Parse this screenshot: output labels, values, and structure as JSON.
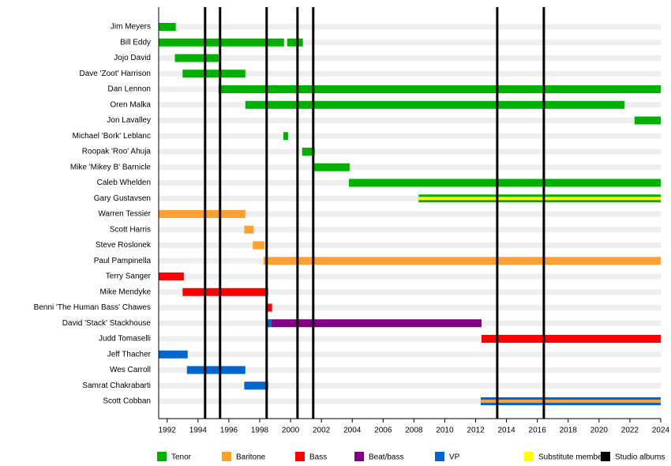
{
  "chart_data": {
    "type": "timeline",
    "xlim": [
      1991.45,
      2024
    ],
    "xticks": [
      1992,
      1994,
      1996,
      1998,
      2000,
      2002,
      2004,
      2006,
      2008,
      2010,
      2012,
      2014,
      2016,
      2018,
      2020,
      2022,
      2024
    ],
    "roles": [
      {
        "name": "Tenor",
        "color": "#00b000"
      },
      {
        "name": "Baritone",
        "color": "#ffa030"
      },
      {
        "name": "Bass",
        "color": "#ff0000"
      },
      {
        "name": "Beat/bass",
        "color": "#800080"
      },
      {
        "name": "VP",
        "color": "#0066cc"
      },
      {
        "name": "Substitute member",
        "color": "#ffff00"
      }
    ],
    "albums": {
      "name": "Studio albums",
      "color": "#000000",
      "x": [
        1994.46,
        1995.43,
        1998.45,
        2000.45,
        2001.47,
        2013.4,
        2016.42
      ]
    },
    "members": [
      {
        "name": "Jim Meyers",
        "spans": [
          {
            "start": 1991.45,
            "end": 1992.56,
            "role": "Tenor"
          }
        ]
      },
      {
        "name": "Bill Eddy",
        "spans": [
          {
            "start": 1991.45,
            "end": 1999.58,
            "role": "Tenor"
          },
          {
            "start": 1999.78,
            "end": 2000.8,
            "role": "Tenor"
          }
        ]
      },
      {
        "name": "Jojo David",
        "spans": [
          {
            "start": 1992.5,
            "end": 1995.33,
            "role": "Tenor"
          }
        ]
      },
      {
        "name": "Dave 'Zoot' Harrison",
        "spans": [
          {
            "start": 1993.0,
            "end": 1997.07,
            "role": "Tenor"
          }
        ]
      },
      {
        "name": "Dan Lennon",
        "spans": [
          {
            "start": 1995.33,
            "end": 2024,
            "role": "Tenor"
          }
        ]
      },
      {
        "name": "Oren Malka",
        "spans": [
          {
            "start": 1997.07,
            "end": 2021.65,
            "role": "Tenor"
          }
        ]
      },
      {
        "name": "Jon Lavalley",
        "spans": [
          {
            "start": 2022.3,
            "end": 2024,
            "role": "Tenor"
          }
        ]
      },
      {
        "name": "Michael 'Bork' Leblanc",
        "spans": [
          {
            "start": 1999.53,
            "end": 1999.84,
            "role": "Tenor"
          }
        ]
      },
      {
        "name": "Roopak 'Roo' Ahuja",
        "spans": [
          {
            "start": 2000.75,
            "end": 2001.57,
            "role": "Tenor"
          }
        ]
      },
      {
        "name": "Mike 'Mikey B' Barnicle",
        "spans": [
          {
            "start": 2001.52,
            "end": 2003.83,
            "role": "Tenor"
          }
        ]
      },
      {
        "name": "Caleb Whelden",
        "spans": [
          {
            "start": 2003.78,
            "end": 2024,
            "role": "Tenor"
          }
        ]
      },
      {
        "name": "Gary Gustavsen",
        "spans": [
          {
            "start": 2008.3,
            "end": 2024,
            "role": "Tenor"
          }
        ],
        "secondary": [
          {
            "start": 2008.3,
            "end": 2024,
            "role": "Substitute member"
          }
        ]
      },
      {
        "name": "Warren Tessier",
        "spans": [
          {
            "start": 1991.45,
            "end": 1997.07,
            "role": "Baritone"
          }
        ]
      },
      {
        "name": "Scott Harris",
        "spans": [
          {
            "start": 1997.0,
            "end": 1997.6,
            "role": "Baritone"
          }
        ]
      },
      {
        "name": "Steve Roslonek",
        "spans": [
          {
            "start": 1997.55,
            "end": 1998.3,
            "role": "Baritone"
          }
        ]
      },
      {
        "name": "Paul Pampinella",
        "spans": [
          {
            "start": 1998.25,
            "end": 2024,
            "role": "Baritone"
          }
        ]
      },
      {
        "name": "Terry Sanger",
        "spans": [
          {
            "start": 1991.45,
            "end": 1993.08,
            "role": "Bass"
          }
        ]
      },
      {
        "name": "Mike Mendyke",
        "spans": [
          {
            "start": 1993.0,
            "end": 1998.55,
            "role": "Bass"
          }
        ]
      },
      {
        "name": "Benni 'The Human Bass' Chawes",
        "spans": [
          {
            "start": 1998.5,
            "end": 1998.8,
            "role": "Bass"
          }
        ]
      },
      {
        "name": "David 'Stack' Stackhouse",
        "spans": [
          {
            "start": 1998.5,
            "end": 1998.76,
            "role": "VP"
          },
          {
            "start": 1998.76,
            "end": 2012.38,
            "role": "Beat/bass"
          }
        ]
      },
      {
        "name": "Judd Tomaselli",
        "spans": [
          {
            "start": 2012.38,
            "end": 2024,
            "role": "Bass"
          }
        ]
      },
      {
        "name": "Jeff Thacher",
        "spans": [
          {
            "start": 1991.45,
            "end": 1993.33,
            "role": "VP"
          }
        ]
      },
      {
        "name": "Wes Carroll",
        "spans": [
          {
            "start": 1993.28,
            "end": 1997.07,
            "role": "VP"
          }
        ]
      },
      {
        "name": "Samrat Chakrabarti",
        "spans": [
          {
            "start": 1997.0,
            "end": 1998.55,
            "role": "VP"
          }
        ]
      },
      {
        "name": "Scott Cobban",
        "spans": [
          {
            "start": 2012.33,
            "end": 2024,
            "role": "VP"
          }
        ],
        "secondary": [
          {
            "start": 2012.33,
            "end": 2024,
            "role": "Baritone"
          }
        ]
      }
    ]
  }
}
